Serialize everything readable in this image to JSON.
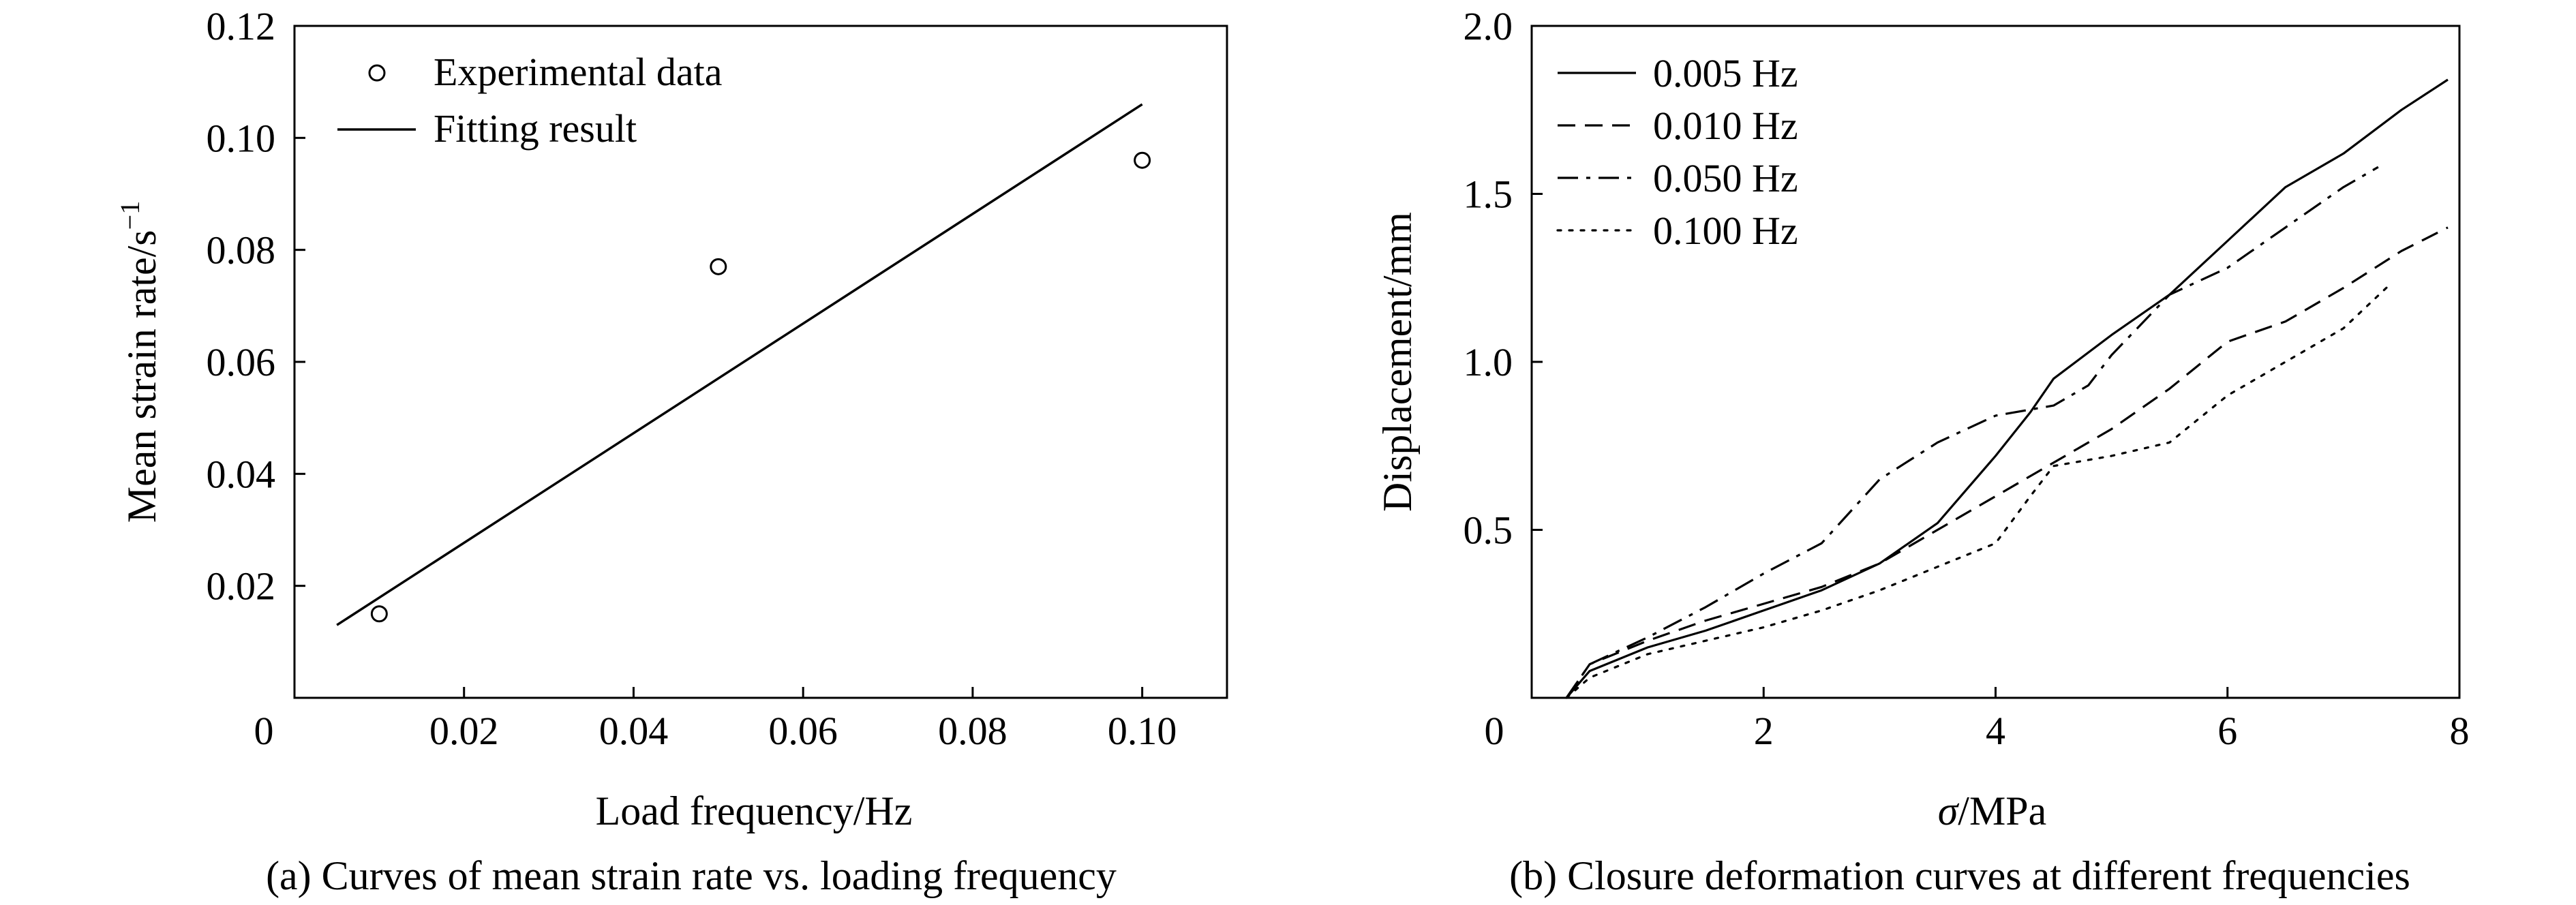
{
  "chart_data": [
    {
      "type": "scatter",
      "caption": "(a) Curves of mean strain rate vs. loading frequency",
      "xlabel": "Load frequency/Hz",
      "ylabel": "Mean strain rate/s",
      "ylabel_sup": "−1",
      "xlim": [
        0,
        0.11
      ],
      "ylim": [
        0,
        0.12
      ],
      "x_ticks": [
        0,
        0.02,
        0.04,
        0.06,
        0.08,
        0.1
      ],
      "x_tick_labels": [
        "0",
        "0.02",
        "0.04",
        "0.06",
        "0.08",
        "0.10"
      ],
      "y_ticks": [
        0.02,
        0.04,
        0.06,
        0.08,
        0.1,
        0.12
      ],
      "y_tick_labels": [
        "0.02",
        "0.04",
        "0.06",
        "0.08",
        "0.10",
        "0.12"
      ],
      "legend_position": "top-left",
      "series": [
        {
          "name": "Experimental data",
          "kind": "points",
          "x": [
            0.01,
            0.05,
            0.1
          ],
          "y": [
            0.015,
            0.077,
            0.096
          ]
        },
        {
          "name": "Fitting result",
          "kind": "line",
          "x": [
            0.005,
            0.1
          ],
          "y": [
            0.013,
            0.106
          ]
        }
      ]
    },
    {
      "type": "line",
      "caption": "(b) Closure deformation curves at different frequencies",
      "xlabel_italic": "σ",
      "xlabel": "/MPa",
      "ylabel": "Displacement/mm",
      "xlim": [
        0,
        8
      ],
      "ylim": [
        0,
        2.0
      ],
      "x_ticks": [
        0,
        2,
        4,
        6,
        8
      ],
      "x_tick_labels": [
        "0",
        "2",
        "4",
        "6",
        "8"
      ],
      "y_ticks": [
        0.5,
        1.0,
        1.5,
        2.0
      ],
      "y_tick_labels": [
        "0.5",
        "1.0",
        "1.5",
        "2.0"
      ],
      "legend_position": "top-left",
      "series": [
        {
          "name": "0.005 Hz",
          "dash": "solid",
          "x": [
            0.3,
            0.5,
            1.0,
            1.5,
            2.0,
            2.5,
            3.0,
            3.5,
            4.0,
            4.3,
            4.5,
            5.0,
            5.5,
            6.0,
            6.5,
            7.0,
            7.5,
            7.9
          ],
          "y": [
            0.0,
            0.08,
            0.15,
            0.2,
            0.26,
            0.32,
            0.4,
            0.52,
            0.72,
            0.85,
            0.95,
            1.08,
            1.2,
            1.36,
            1.52,
            1.62,
            1.75,
            1.84
          ]
        },
        {
          "name": "0.010 Hz",
          "dash": "dashed",
          "x": [
            0.3,
            0.5,
            1.0,
            1.5,
            2.0,
            2.5,
            3.0,
            3.5,
            4.0,
            4.5,
            5.0,
            5.5,
            6.0,
            6.5,
            7.0,
            7.5,
            7.9
          ],
          "y": [
            0.0,
            0.1,
            0.17,
            0.23,
            0.28,
            0.33,
            0.4,
            0.5,
            0.6,
            0.7,
            0.8,
            0.92,
            1.06,
            1.12,
            1.22,
            1.33,
            1.4
          ]
        },
        {
          "name": "0.050 Hz",
          "dash": "dashdot",
          "x": [
            0.3,
            0.5,
            1.0,
            1.5,
            2.0,
            2.5,
            3.0,
            3.5,
            4.0,
            4.5,
            4.8,
            5.0,
            5.5,
            6.0,
            6.5,
            7.0,
            7.3
          ],
          "y": [
            0.0,
            0.1,
            0.18,
            0.27,
            0.37,
            0.46,
            0.65,
            0.76,
            0.84,
            0.87,
            0.93,
            1.02,
            1.2,
            1.28,
            1.4,
            1.52,
            1.58
          ]
        },
        {
          "name": "0.100 Hz",
          "dash": "dotted",
          "x": [
            0.3,
            0.5,
            1.0,
            1.5,
            2.0,
            2.5,
            3.0,
            3.5,
            4.0,
            4.3,
            4.5,
            5.0,
            5.5,
            6.0,
            6.5,
            7.0,
            7.4
          ],
          "y": [
            0.0,
            0.06,
            0.13,
            0.17,
            0.21,
            0.26,
            0.32,
            0.39,
            0.46,
            0.6,
            0.69,
            0.72,
            0.76,
            0.9,
            1.0,
            1.1,
            1.23
          ]
        }
      ]
    }
  ]
}
